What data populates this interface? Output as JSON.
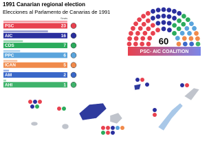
{
  "chart_data": {
    "type": "bar",
    "title": "1991 Canarian regional election",
    "subtitle": "Elecciones al Parlamento de Canarias de 1991",
    "value_header": "Seats",
    "categories": [
      "PSC",
      "AIC",
      "CDS",
      "PPC",
      "ICAN",
      "AM",
      "AHI"
    ],
    "values": [
      23,
      16,
      7,
      6,
      5,
      2,
      1
    ],
    "colors": [
      "#e8414f",
      "#2a2f9e",
      "#2bab5c",
      "#5aa4dc",
      "#f08a4b",
      "#3a68c9",
      "#3fb36b"
    ],
    "total_seats": 60,
    "coalition": "PSC- AIC COALITION"
  }
}
